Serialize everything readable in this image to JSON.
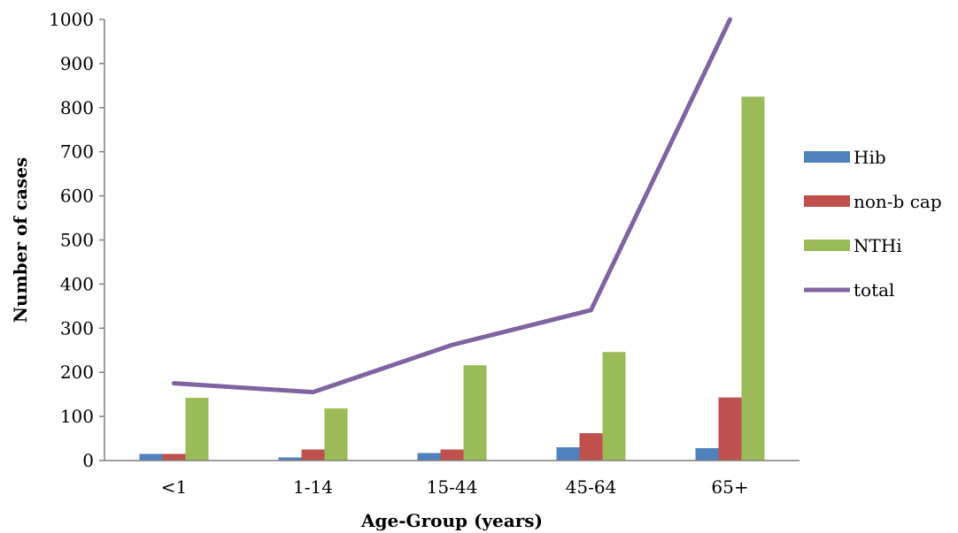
{
  "chart_data": {
    "type": "bar",
    "xlabel": "Age-Group (years)",
    "ylabel": "Number of cases",
    "ylim": [
      0,
      1000
    ],
    "yticks": [
      0,
      100,
      200,
      300,
      400,
      500,
      600,
      700,
      800,
      900,
      1000
    ],
    "categories": [
      "<1",
      "1-14",
      "15-44",
      "45-64",
      "65+"
    ],
    "series": [
      {
        "name": "Hib",
        "type": "bar",
        "color": "#4F81BD",
        "values": [
          15,
          7,
          17,
          30,
          28
        ]
      },
      {
        "name": "non-b cap",
        "type": "bar",
        "color": "#C0504D",
        "values": [
          15,
          25,
          25,
          62,
          143
        ]
      },
      {
        "name": "NTHi",
        "type": "bar",
        "color": "#9BBB59",
        "values": [
          142,
          118,
          216,
          246,
          825
        ]
      },
      {
        "name": "total",
        "type": "line",
        "color": "#8064A2",
        "values": [
          175,
          155,
          262,
          341,
          1000
        ]
      }
    ],
    "legend": "right",
    "grid": false
  }
}
